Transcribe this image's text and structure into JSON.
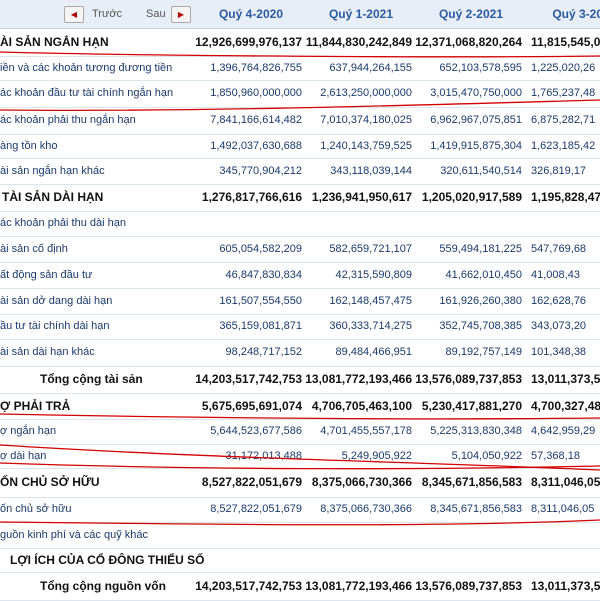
{
  "nav": {
    "prev_label": "Trước",
    "next_label": "Sau",
    "prev_icon": "triangle-left-icon",
    "next_icon": "triangle-right-icon"
  },
  "columns": [
    "Quý 4-2020",
    "Quý 1-2021",
    "Quý 2-2021",
    "Quý 3-202"
  ],
  "rows": [
    {
      "label": "ÀI SẢN NGẮN HẠN",
      "values": [
        "12,926,699,976,137",
        "11,844,830,242,849",
        "12,371,068,820,264",
        "11,815,545,06"
      ],
      "bold": true
    },
    {
      "label": "iền và các khoản tương đương tiền",
      "values": [
        "1,396,764,826,755",
        "637,944,264,155",
        "652,103,578,595",
        "1,225,020,26"
      ],
      "bold": false
    },
    {
      "label": "ác khoản đầu tư tài chính ngắn hạn",
      "values": [
        "1,850,960,000,000",
        "2,613,250,000,000",
        "3,015,470,750,000",
        "1,765,237,48"
      ],
      "bold": false
    },
    {
      "label": "ác khoản phải thu ngắn hạn",
      "values": [
        "7,841,166,614,482",
        "7,010,374,180,025",
        "6,962,967,075,851",
        "6,875,282,71"
      ],
      "bold": false
    },
    {
      "label": "àng tồn kho",
      "values": [
        "1,492,037,630,688",
        "1,240,143,759,525",
        "1,419,915,875,304",
        "1,623,185,42"
      ],
      "bold": false
    },
    {
      "label": "ài sản ngắn hạn khác",
      "values": [
        "345,770,904,212",
        "343,118,039,144",
        "320,611,540,514",
        "326,819,17"
      ],
      "bold": false
    },
    {
      "label": "TÀI SẢN DÀI HẠN",
      "values": [
        "1,276,817,766,616",
        "1,236,941,950,617",
        "1,205,020,917,589",
        "1,195,828,47"
      ],
      "bold": true
    },
    {
      "label": "ác khoản phải thu dài hạn",
      "values": [
        "",
        "",
        "",
        ""
      ],
      "bold": false
    },
    {
      "label": "ài sản cố định",
      "values": [
        "605,054,582,209",
        "582,659,721,107",
        "559,494,181,225",
        "547,769,68"
      ],
      "bold": false
    },
    {
      "label": "ất động sản đầu tư",
      "values": [
        "46,847,830,834",
        "42,315,590,809",
        "41,662,010,450",
        "41,008,43"
      ],
      "bold": false
    },
    {
      "label": "ài sản dở dang dài hạn",
      "values": [
        "161,507,554,550",
        "162,148,457,475",
        "161,926,260,380",
        "162,628,76"
      ],
      "bold": false
    },
    {
      "label": "ầu tư tài chính dài hạn",
      "values": [
        "365,159,081,871",
        "360,333,714,275",
        "352,745,708,385",
        "343,073,20"
      ],
      "bold": false
    },
    {
      "label": "ài sản dài hạn khác",
      "values": [
        "98,248,717,152",
        "89,484,466,951",
        "89,192,757,149",
        "101,348,38"
      ],
      "bold": false
    },
    {
      "label": "Tổng cộng tài sản",
      "values": [
        "14,203,517,742,753",
        "13,081,772,193,466",
        "13,576,089,737,853",
        "13,011,373,53"
      ],
      "bold": true
    },
    {
      "label": "Ợ PHẢI TRẢ",
      "values": [
        "5,675,695,691,074",
        "4,706,705,463,100",
        "5,230,417,881,270",
        "4,700,327,48"
      ],
      "bold": true
    },
    {
      "label": "ợ ngắn hạn",
      "values": [
        "5,644,523,677,586",
        "4,701,455,557,178",
        "5,225,313,830,348",
        "4,642,959,29"
      ],
      "bold": false
    },
    {
      "label": "ợ dài hạn",
      "values": [
        "31,172,013,488",
        "5,249,905,922",
        "5,104,050,922",
        "57,368,18"
      ],
      "bold": false
    },
    {
      "label": "ỐN CHỦ SỞ HỮU",
      "values": [
        "8,527,822,051,679",
        "8,375,066,730,366",
        "8,345,671,856,583",
        "8,311,046,05"
      ],
      "bold": true
    },
    {
      "label": "ốn chủ sở hữu",
      "values": [
        "8,527,822,051,679",
        "8,375,066,730,366",
        "8,345,671,856,583",
        "8,311,046,05"
      ],
      "bold": false
    },
    {
      "label": "guồn kinh phí và các quỹ khác",
      "values": [
        "",
        "",
        "",
        ""
      ],
      "bold": false
    },
    {
      "label": "LỢI ÍCH CỦA CỔ ĐÔNG THIỂU SỐ",
      "values": [
        "",
        "",
        "",
        ""
      ],
      "bold": true
    },
    {
      "label": "Tổng cộng nguồn vốn",
      "values": [
        "14,203,517,742,753",
        "13,081,772,193,466",
        "13,576,089,737,853",
        "13,011,373,53"
      ],
      "bold": true
    }
  ],
  "annotation_color": "#d40000"
}
